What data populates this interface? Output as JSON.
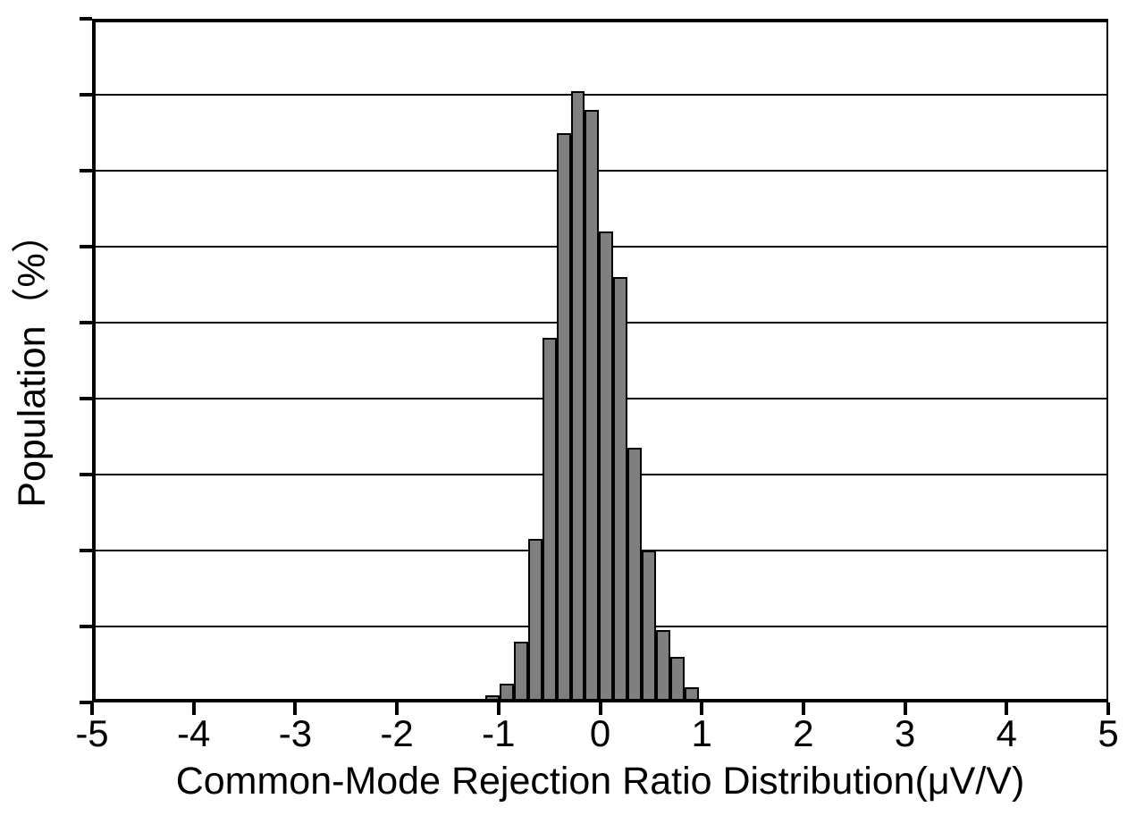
{
  "chart_data": {
    "type": "bar",
    "subtype": "histogram",
    "title": "",
    "xlabel": "Common-Mode Rejection Ratio Distribution(μV/V)",
    "ylabel": "Population（%）",
    "xlim": [
      -5,
      5
    ],
    "ylim": [
      0,
      18
    ],
    "x_tick_values": [
      -5,
      -4,
      -3,
      -2,
      -1,
      0,
      1,
      2,
      3,
      4,
      5
    ],
    "x_tick_labels": [
      "-5",
      "-4",
      "-3",
      "-2",
      "-1",
      "0",
      "1",
      "2",
      "3",
      "4",
      "5"
    ],
    "y_tick_count": 10,
    "y_tick_labels_shown": false,
    "y_gridline_step_pct": 2,
    "grid": "horizontal",
    "legend": "none",
    "bins": {
      "start": -1.13,
      "width": 0.14,
      "count": 15
    },
    "bin_centers": [
      -1.06,
      -0.92,
      -0.78,
      -0.64,
      -0.5,
      -0.36,
      -0.22,
      -0.08,
      0.06,
      0.2,
      0.34,
      0.48,
      0.62,
      0.76,
      0.9
    ],
    "values_pct": [
      0.2,
      0.5,
      1.6,
      4.3,
      9.6,
      15.0,
      16.1,
      15.6,
      12.4,
      11.2,
      6.7,
      4.0,
      1.9,
      1.2,
      0.4
    ],
    "colors": {
      "bar_fill": "#7f7f7f",
      "bar_edge": "#000000",
      "gridline": "#000000",
      "axis": "#000000",
      "text": "#000000",
      "background": "#ffffff"
    }
  }
}
